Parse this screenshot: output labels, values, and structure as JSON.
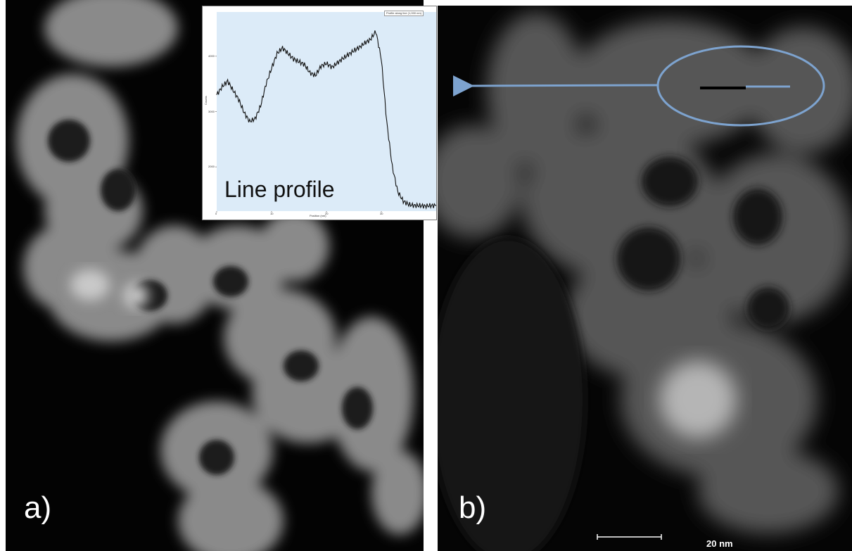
{
  "panels": {
    "a": {
      "label": "a)"
    },
    "b": {
      "label": "b)",
      "scale_bar": "20 nm"
    }
  },
  "inset": {
    "title": "Line profile",
    "legend": "Profile along line (1,000 nm)",
    "x_ticks": [
      "0",
      "10",
      "20",
      "30"
    ],
    "y_ticks": [
      "2000",
      "3000",
      "4000"
    ],
    "xlabel": "Position (nm)",
    "ylabel": "Counts",
    "background": "#dcebf8",
    "line_color": "#111111"
  },
  "annotation": {
    "color": "#7da3cf"
  },
  "chart_data": {
    "type": "line",
    "title": "Line profile",
    "xlabel": "Position (nm)",
    "ylabel": "Counts",
    "xlim": [
      0,
      40
    ],
    "ylim": [
      1200,
      4800
    ],
    "x": [
      0,
      1,
      2,
      3,
      4,
      5,
      6,
      7,
      8,
      9,
      10,
      11,
      12,
      13,
      14,
      15,
      16,
      17,
      18,
      19,
      20,
      21,
      22,
      23,
      24,
      25,
      26,
      27,
      28,
      29,
      30,
      31,
      32,
      33,
      34,
      35,
      36,
      37,
      38,
      39,
      40
    ],
    "values": [
      3300,
      3450,
      3550,
      3380,
      3220,
      2980,
      2820,
      2870,
      3100,
      3500,
      3780,
      4050,
      4150,
      4050,
      3950,
      3900,
      3850,
      3700,
      3650,
      3820,
      3870,
      3800,
      3880,
      3960,
      4030,
      4100,
      4160,
      4240,
      4300,
      4450,
      3950,
      2800,
      2000,
      1550,
      1380,
      1320,
      1300,
      1300,
      1290,
      1300,
      1300
    ]
  }
}
